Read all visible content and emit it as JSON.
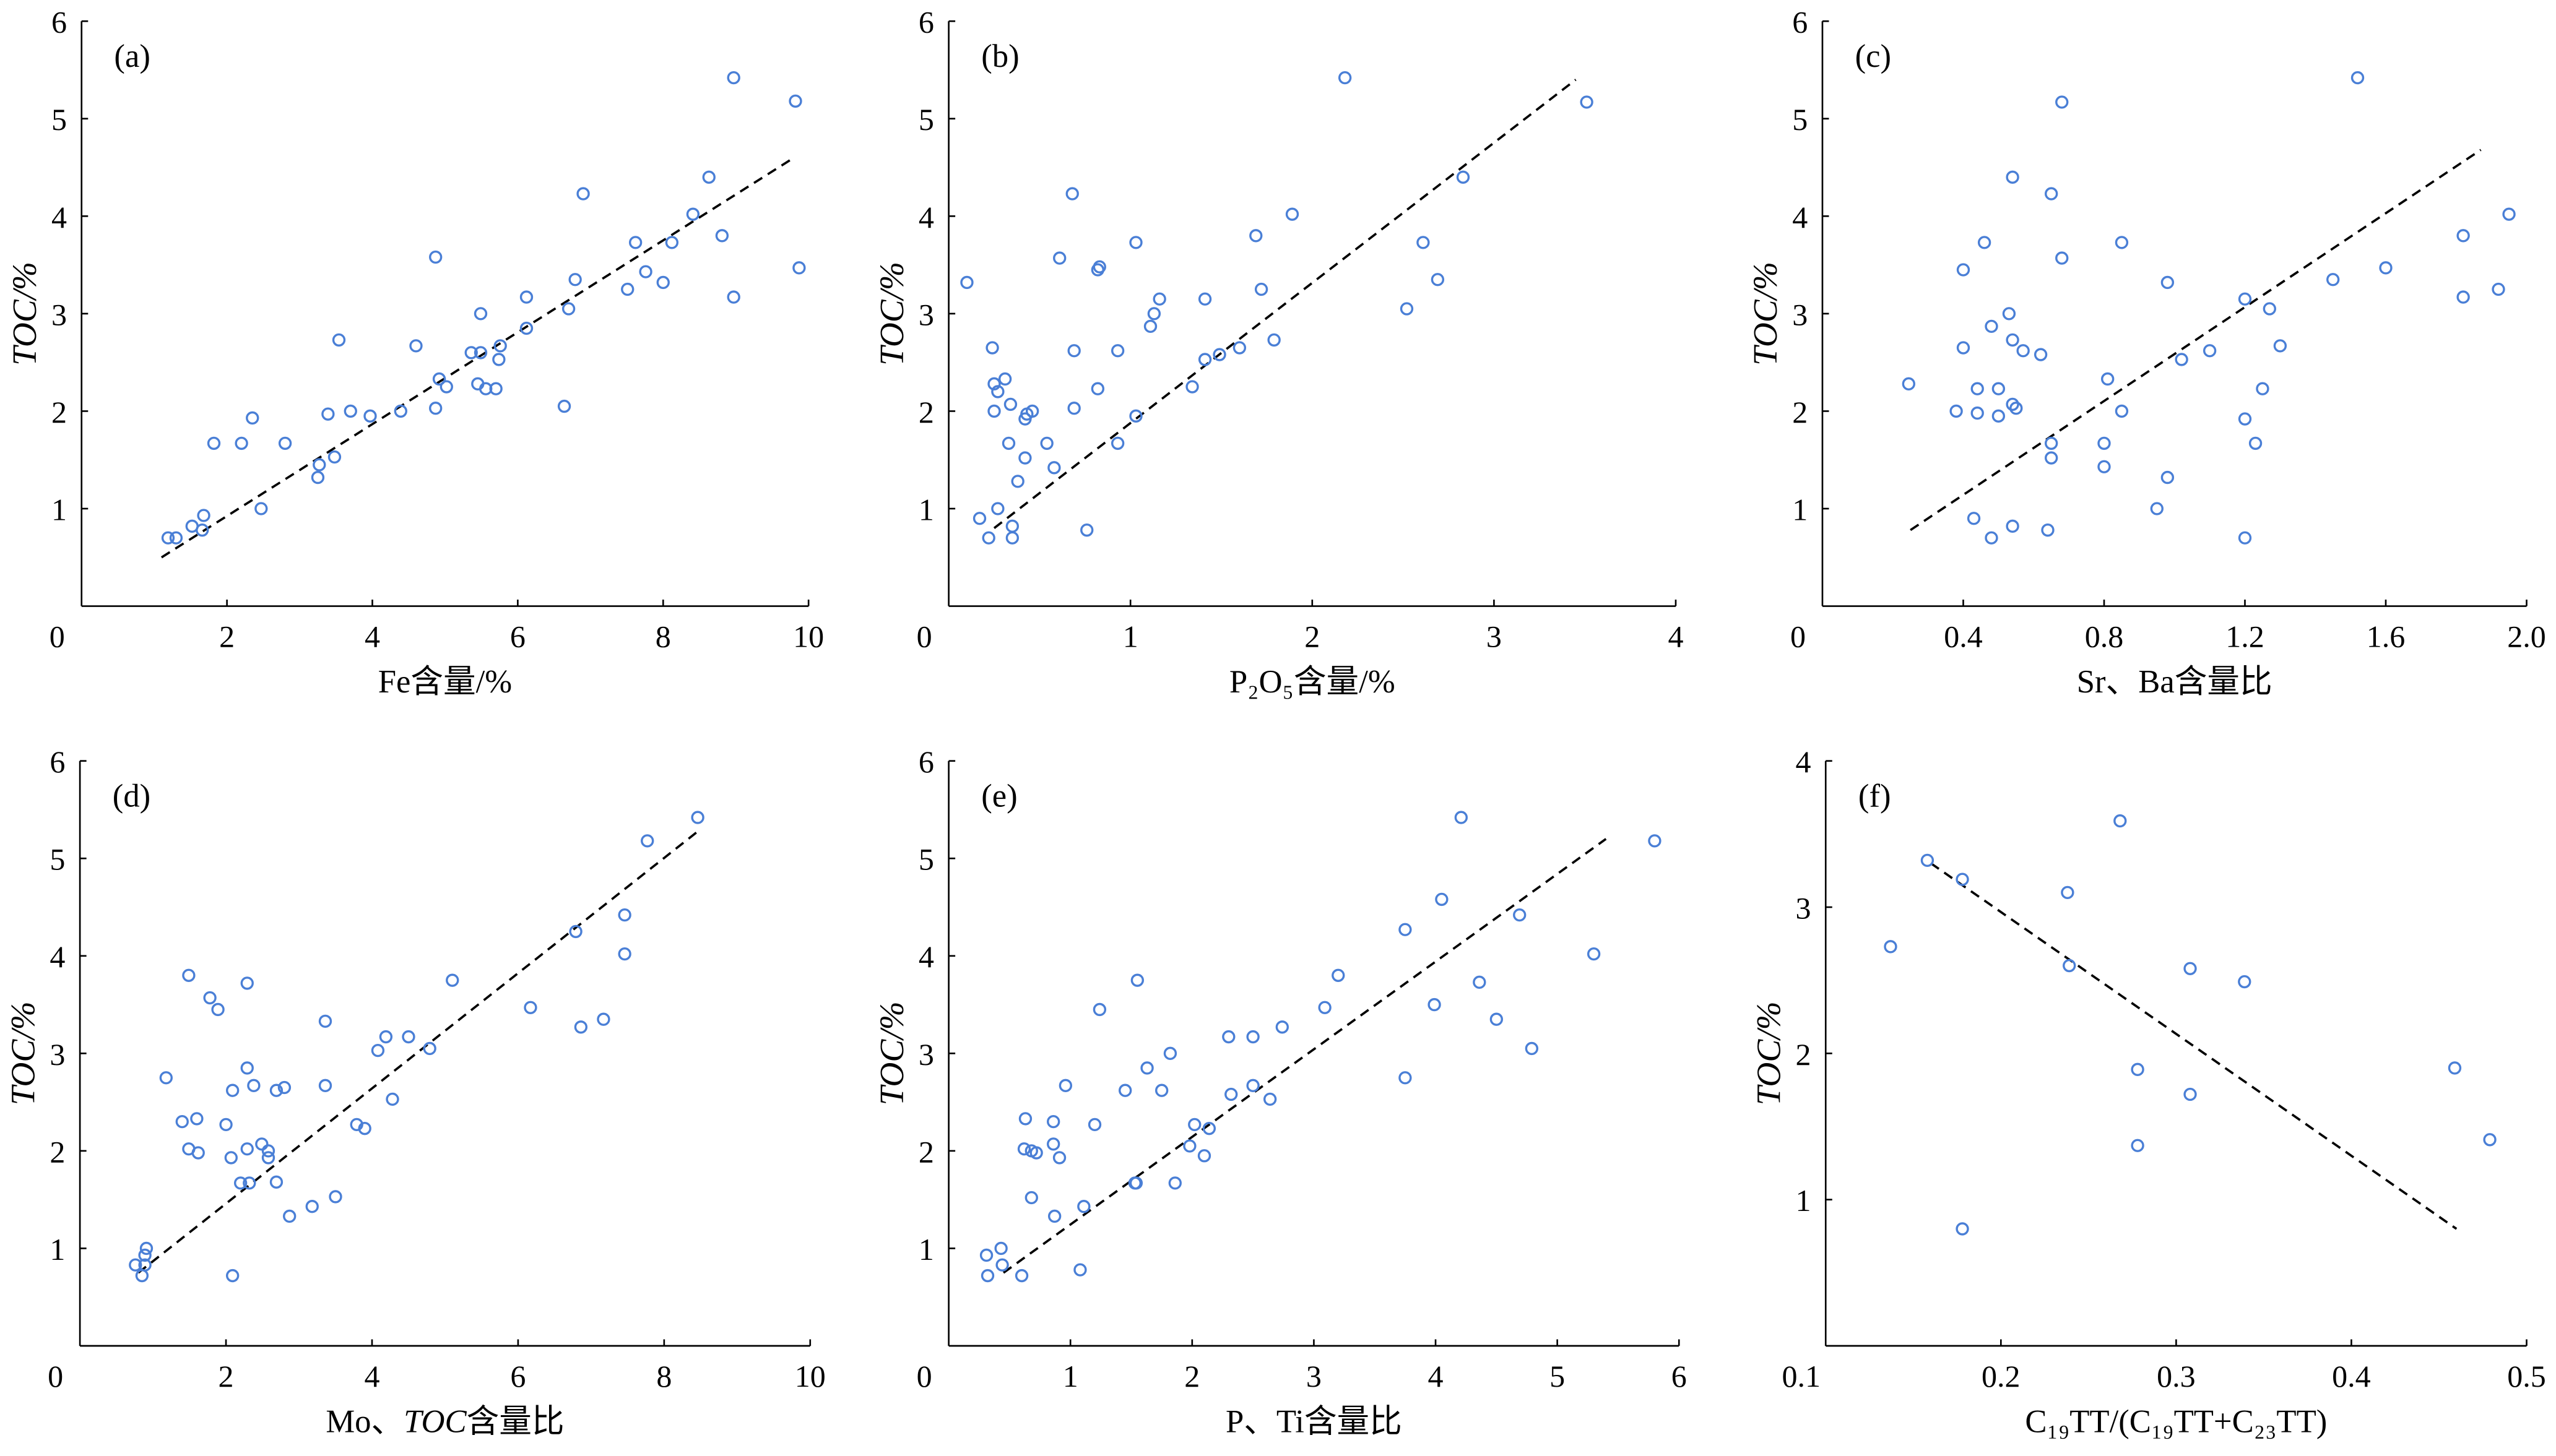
{
  "chart_data": [
    {
      "type": "scatter",
      "panel_label": "(a)",
      "xlabel": "Fe含量/%",
      "ylabel": "TOC/%",
      "xlim": [
        0,
        10
      ],
      "ylim": [
        0,
        6
      ],
      "xticks": [
        0,
        2,
        4,
        6,
        8,
        10
      ],
      "xtick_labels": [
        "0",
        "2",
        "4",
        "6",
        "8",
        "10"
      ],
      "yticks": [
        0,
        1,
        2,
        3,
        4,
        5,
        6
      ],
      "ytick_labels": [
        "0",
        "1",
        "2",
        "3",
        "4",
        "5",
        "6"
      ],
      "marker_color": "#4a7fd6",
      "points": [
        [
          1.19,
          0.7
        ],
        [
          1.3,
          0.7
        ],
        [
          1.52,
          0.82
        ],
        [
          1.68,
          0.93
        ],
        [
          1.66,
          0.78
        ],
        [
          1.82,
          1.67
        ],
        [
          2.2,
          1.67
        ],
        [
          2.35,
          1.93
        ],
        [
          2.47,
          1.0
        ],
        [
          2.8,
          1.67
        ],
        [
          3.25,
          1.32
        ],
        [
          3.27,
          1.45
        ],
        [
          3.48,
          1.53
        ],
        [
          3.39,
          1.97
        ],
        [
          3.54,
          2.73
        ],
        [
          3.7,
          2.0
        ],
        [
          3.97,
          1.95
        ],
        [
          4.39,
          2.0
        ],
        [
          4.6,
          2.67
        ],
        [
          4.87,
          3.58
        ],
        [
          4.92,
          2.33
        ],
        [
          4.87,
          2.03
        ],
        [
          5.02,
          2.25
        ],
        [
          5.36,
          2.6
        ],
        [
          5.49,
          2.6
        ],
        [
          5.49,
          3.0
        ],
        [
          5.45,
          2.28
        ],
        [
          5.56,
          2.23
        ],
        [
          5.7,
          2.23
        ],
        [
          5.74,
          2.53
        ],
        [
          5.76,
          2.67
        ],
        [
          6.12,
          3.17
        ],
        [
          6.12,
          2.85
        ],
        [
          6.64,
          2.05
        ],
        [
          6.7,
          3.05
        ],
        [
          6.79,
          3.35
        ],
        [
          6.9,
          4.23
        ],
        [
          7.51,
          3.25
        ],
        [
          7.62,
          3.73
        ],
        [
          7.76,
          3.43
        ],
        [
          8.0,
          3.32
        ],
        [
          8.12,
          3.73
        ],
        [
          8.41,
          4.02
        ],
        [
          8.63,
          4.4
        ],
        [
          8.81,
          3.8
        ],
        [
          8.97,
          5.42
        ],
        [
          8.97,
          3.17
        ],
        [
          9.82,
          5.18
        ],
        [
          9.87,
          3.47
        ]
      ],
      "trend_line": [
        [
          1.1,
          0.5
        ],
        [
          9.8,
          4.6
        ]
      ]
    },
    {
      "type": "scatter",
      "panel_label": "(b)",
      "xlabel": "P₂O₅含量/%",
      "ylabel": "TOC/%",
      "xlim": [
        0,
        4
      ],
      "ylim": [
        0,
        6
      ],
      "xticks": [
        0,
        1,
        2,
        3,
        4
      ],
      "xtick_labels": [
        "0",
        "1",
        "2",
        "3",
        "4"
      ],
      "yticks": [
        0,
        1,
        2,
        3,
        4,
        5,
        6
      ],
      "ytick_labels": [
        "0",
        "1",
        "2",
        "3",
        "4",
        "5",
        "6"
      ],
      "marker_color": "#4a7fd6",
      "points": [
        [
          0.1,
          3.32
        ],
        [
          0.17,
          0.9
        ],
        [
          0.22,
          0.7
        ],
        [
          0.24,
          2.65
        ],
        [
          0.25,
          2.28
        ],
        [
          0.27,
          2.2
        ],
        [
          0.25,
          2.0
        ],
        [
          0.27,
          1.0
        ],
        [
          0.31,
          2.33
        ],
        [
          0.34,
          2.07
        ],
        [
          0.33,
          1.67
        ],
        [
          0.35,
          0.82
        ],
        [
          0.35,
          0.7
        ],
        [
          0.38,
          1.28
        ],
        [
          0.42,
          1.52
        ],
        [
          0.43,
          1.97
        ],
        [
          0.42,
          1.92
        ],
        [
          0.46,
          2.0
        ],
        [
          0.54,
          1.67
        ],
        [
          0.58,
          1.42
        ],
        [
          0.61,
          3.57
        ],
        [
          0.76,
          0.78
        ],
        [
          0.68,
          4.23
        ],
        [
          0.69,
          2.62
        ],
        [
          0.69,
          2.03
        ],
        [
          0.82,
          3.45
        ],
        [
          0.83,
          3.48
        ],
        [
          0.82,
          2.23
        ],
        [
          0.93,
          1.67
        ],
        [
          0.93,
          2.62
        ],
        [
          1.03,
          3.73
        ],
        [
          1.03,
          1.95
        ],
        [
          1.11,
          2.87
        ],
        [
          1.13,
          3.0
        ],
        [
          1.16,
          3.15
        ],
        [
          1.41,
          3.15
        ],
        [
          1.41,
          2.53
        ],
        [
          1.49,
          2.58
        ],
        [
          1.34,
          2.25
        ],
        [
          1.6,
          2.65
        ],
        [
          1.69,
          3.8
        ],
        [
          1.72,
          3.25
        ],
        [
          1.79,
          2.73
        ],
        [
          1.89,
          4.02
        ],
        [
          2.18,
          5.42
        ],
        [
          2.52,
          3.05
        ],
        [
          2.61,
          3.73
        ],
        [
          2.69,
          3.35
        ],
        [
          2.83,
          4.4
        ],
        [
          3.51,
          5.17
        ]
      ],
      "trend_line": [
        [
          0.25,
          0.8
        ],
        [
          3.45,
          5.4
        ]
      ]
    },
    {
      "type": "scatter",
      "panel_label": "(c)",
      "xlabel": "Sr、Ba含量比",
      "ylabel": "TOC/%",
      "xlim": [
        0,
        2.0
      ],
      "ylim": [
        0,
        6
      ],
      "xticks": [
        0,
        0.4,
        0.8,
        1.2,
        1.6,
        2.0
      ],
      "xtick_labels": [
        "0",
        "0.4",
        "0.8",
        "1.2",
        "1.6",
        "2.0"
      ],
      "yticks": [
        0,
        1,
        2,
        3,
        4,
        5,
        6
      ],
      "ytick_labels": [
        "0",
        "1",
        "2",
        "3",
        "4",
        "5",
        "6"
      ],
      "marker_color": "#4a7fd6",
      "points": [
        [
          0.245,
          2.28
        ],
        [
          0.38,
          2.0
        ],
        [
          0.4,
          3.45
        ],
        [
          0.4,
          2.65
        ],
        [
          0.43,
          0.9
        ],
        [
          0.44,
          2.23
        ],
        [
          0.44,
          1.98
        ],
        [
          0.46,
          3.73
        ],
        [
          0.48,
          2.87
        ],
        [
          0.48,
          0.7
        ],
        [
          0.5,
          2.23
        ],
        [
          0.5,
          1.95
        ],
        [
          0.53,
          3.0
        ],
        [
          0.54,
          2.73
        ],
        [
          0.54,
          4.4
        ],
        [
          0.54,
          2.07
        ],
        [
          0.55,
          2.03
        ],
        [
          0.54,
          0.82
        ],
        [
          0.57,
          2.62
        ],
        [
          0.62,
          2.58
        ],
        [
          0.64,
          0.78
        ],
        [
          0.65,
          4.23
        ],
        [
          0.65,
          1.67
        ],
        [
          0.65,
          1.52
        ],
        [
          0.68,
          5.17
        ],
        [
          0.68,
          3.57
        ],
        [
          0.81,
          2.33
        ],
        [
          0.85,
          3.73
        ],
        [
          0.85,
          2.0
        ],
        [
          0.8,
          1.67
        ],
        [
          0.8,
          1.43
        ],
        [
          0.98,
          1.32
        ],
        [
          0.95,
          1.0
        ],
        [
          0.98,
          3.32
        ],
        [
          1.02,
          2.53
        ],
        [
          1.1,
          2.62
        ],
        [
          1.2,
          3.15
        ],
        [
          1.2,
          1.92
        ],
        [
          1.2,
          0.7
        ],
        [
          1.23,
          1.67
        ],
        [
          1.25,
          2.23
        ],
        [
          1.27,
          3.05
        ],
        [
          1.3,
          2.67
        ],
        [
          1.45,
          3.35
        ],
        [
          1.52,
          5.42
        ],
        [
          1.6,
          3.47
        ],
        [
          1.82,
          3.8
        ],
        [
          1.82,
          3.17
        ],
        [
          1.92,
          3.25
        ],
        [
          1.95,
          4.02
        ]
      ],
      "trend_line": [
        [
          0.25,
          0.78
        ],
        [
          1.87,
          4.68
        ]
      ]
    },
    {
      "type": "scatter",
      "panel_label": "(d)",
      "xlabel": "Mo、TOC含量比",
      "ylabel": "TOC/%",
      "xlim": [
        0,
        10
      ],
      "ylim": [
        0,
        6
      ],
      "xticks": [
        0,
        2,
        4,
        6,
        8,
        10
      ],
      "xtick_labels": [
        "0",
        "2",
        "4",
        "6",
        "8",
        "10"
      ],
      "yticks": [
        0,
        1,
        2,
        3,
        4,
        5,
        6
      ],
      "ytick_labels": [
        "0",
        "1",
        "2",
        "3",
        "4",
        "5",
        "6"
      ],
      "marker_color": "#4a7fd6",
      "points": [
        [
          0.76,
          0.83
        ],
        [
          0.85,
          0.72
        ],
        [
          0.89,
          0.93
        ],
        [
          0.91,
          1.0
        ],
        [
          0.89,
          0.83
        ],
        [
          1.18,
          2.75
        ],
        [
          1.4,
          2.3
        ],
        [
          1.49,
          3.8
        ],
        [
          1.49,
          2.02
        ],
        [
          1.6,
          2.33
        ],
        [
          1.62,
          1.98
        ],
        [
          1.78,
          3.57
        ],
        [
          1.89,
          3.45
        ],
        [
          2.0,
          2.27
        ],
        [
          2.07,
          1.93
        ],
        [
          2.09,
          0.72
        ],
        [
          2.09,
          2.62
        ],
        [
          2.2,
          1.67
        ],
        [
          2.29,
          3.72
        ],
        [
          2.29,
          2.85
        ],
        [
          2.32,
          1.67
        ],
        [
          2.29,
          2.02
        ],
        [
          2.38,
          2.67
        ],
        [
          2.49,
          2.07
        ],
        [
          2.58,
          2.0
        ],
        [
          2.58,
          1.93
        ],
        [
          2.69,
          2.62
        ],
        [
          2.69,
          1.68
        ],
        [
          2.8,
          2.65
        ],
        [
          2.87,
          1.33
        ],
        [
          3.18,
          1.43
        ],
        [
          3.36,
          3.33
        ],
        [
          3.36,
          2.67
        ],
        [
          3.5,
          1.53
        ],
        [
          3.79,
          2.27
        ],
        [
          3.9,
          2.23
        ],
        [
          4.08,
          3.03
        ],
        [
          4.19,
          3.17
        ],
        [
          4.28,
          2.53
        ],
        [
          4.5,
          3.17
        ],
        [
          4.79,
          3.05
        ],
        [
          5.1,
          3.75
        ],
        [
          6.17,
          3.47
        ],
        [
          6.79,
          4.25
        ],
        [
          6.86,
          3.27
        ],
        [
          7.17,
          3.35
        ],
        [
          7.46,
          4.02
        ],
        [
          7.46,
          4.42
        ],
        [
          7.77,
          5.18
        ],
        [
          8.46,
          5.42
        ]
      ],
      "trend_line": [
        [
          0.8,
          0.75
        ],
        [
          8.5,
          5.3
        ]
      ]
    },
    {
      "type": "scatter",
      "panel_label": "(e)",
      "xlabel": "P、Ti含量比",
      "ylabel": "TOC/%",
      "xlim": [
        0,
        6
      ],
      "ylim": [
        0,
        6
      ],
      "xticks": [
        0,
        1,
        2,
        3,
        4,
        5,
        6
      ],
      "xtick_labels": [
        "0",
        "1",
        "2",
        "3",
        "4",
        "5",
        "6"
      ],
      "yticks": [
        0,
        1,
        2,
        3,
        4,
        5,
        6
      ],
      "ytick_labels": [
        "0",
        "1",
        "2",
        "3",
        "4",
        "5",
        "6"
      ],
      "marker_color": "#4a7fd6",
      "points": [
        [
          0.31,
          0.93
        ],
        [
          0.32,
          0.72
        ],
        [
          0.43,
          1.0
        ],
        [
          0.44,
          0.83
        ],
        [
          0.6,
          0.72
        ],
        [
          0.63,
          2.33
        ],
        [
          0.62,
          2.02
        ],
        [
          0.68,
          2.0
        ],
        [
          0.68,
          1.52
        ],
        [
          0.72,
          1.98
        ],
        [
          0.86,
          2.3
        ],
        [
          0.87,
          1.33
        ],
        [
          0.86,
          2.07
        ],
        [
          0.91,
          1.93
        ],
        [
          0.96,
          2.67
        ],
        [
          1.08,
          0.78
        ],
        [
          1.11,
          1.43
        ],
        [
          1.2,
          2.27
        ],
        [
          1.24,
          3.45
        ],
        [
          1.45,
          2.62
        ],
        [
          1.53,
          1.67
        ],
        [
          1.54,
          1.67
        ],
        [
          1.55,
          3.75
        ],
        [
          1.63,
          2.85
        ],
        [
          1.75,
          2.62
        ],
        [
          1.82,
          3.0
        ],
        [
          1.86,
          1.67
        ],
        [
          1.98,
          2.05
        ],
        [
          2.02,
          2.27
        ],
        [
          2.1,
          1.95
        ],
        [
          2.14,
          2.23
        ],
        [
          2.3,
          3.17
        ],
        [
          2.32,
          2.58
        ],
        [
          2.5,
          2.67
        ],
        [
          2.5,
          3.17
        ],
        [
          2.64,
          2.53
        ],
        [
          2.74,
          3.27
        ],
        [
          3.09,
          3.47
        ],
        [
          3.2,
          3.8
        ],
        [
          3.75,
          4.27
        ],
        [
          3.75,
          2.75
        ],
        [
          3.99,
          3.5
        ],
        [
          4.05,
          4.58
        ],
        [
          4.21,
          5.42
        ],
        [
          4.36,
          3.73
        ],
        [
          4.5,
          3.35
        ],
        [
          4.69,
          4.42
        ],
        [
          4.79,
          3.05
        ],
        [
          5.3,
          4.02
        ],
        [
          5.8,
          5.18
        ]
      ],
      "trend_line": [
        [
          0.45,
          0.75
        ],
        [
          5.4,
          5.2
        ]
      ]
    },
    {
      "type": "scatter",
      "panel_label": "(f)",
      "xlabel": "C₁₉TT/(C₁₉TT+C₂₃TT)",
      "ylabel": "TOC/%",
      "xlim": [
        0.1,
        0.5
      ],
      "ylim": [
        0,
        4
      ],
      "xticks": [
        0.1,
        0.2,
        0.3,
        0.4,
        0.5
      ],
      "xtick_labels": [
        "0.1",
        "0.2",
        "0.3",
        "0.4",
        "0.5"
      ],
      "yticks": [
        0,
        1,
        2,
        3,
        4
      ],
      "ytick_labels": [
        "0",
        "1",
        "2",
        "3",
        "4"
      ],
      "marker_color": "#4a7fd6",
      "points": [
        [
          0.137,
          2.73
        ],
        [
          0.158,
          3.32
        ],
        [
          0.178,
          3.19
        ],
        [
          0.178,
          0.8
        ],
        [
          0.238,
          3.1
        ],
        [
          0.239,
          2.6
        ],
        [
          0.268,
          3.59
        ],
        [
          0.278,
          1.89
        ],
        [
          0.278,
          1.37
        ],
        [
          0.308,
          2.58
        ],
        [
          0.308,
          1.72
        ],
        [
          0.339,
          2.49
        ],
        [
          0.459,
          1.9
        ],
        [
          0.479,
          1.41
        ]
      ],
      "trend_line": [
        [
          0.16,
          3.3
        ],
        [
          0.46,
          0.8
        ]
      ]
    }
  ]
}
